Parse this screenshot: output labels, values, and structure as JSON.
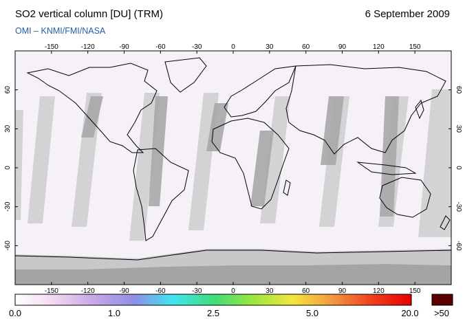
{
  "header": {
    "title": "SO2 vertical column [DU] (TRM)",
    "date": "6 September 2009",
    "credit": "OMI  –  KNMI/FMI/NASA"
  },
  "map": {
    "lon_ticks": [
      "-150",
      "-120",
      "-90",
      "-60",
      "-30",
      "0",
      "30",
      "60",
      "90",
      "120",
      "150"
    ],
    "lat_ticks": [
      "60",
      "30",
      "0",
      "-30",
      "-60"
    ],
    "colors": {
      "ocean_land_background": "#f6f1f9",
      "no_data_light_gray": "#d2d2d2",
      "no_data_dark_gray": "#a8a8a8",
      "coastline": "#000000"
    }
  },
  "colorbar": {
    "labels": [
      "0.0",
      "1.0",
      "2.5",
      "5.0",
      "20.0"
    ],
    "overflow_label": ">50",
    "overflow_color": "#5a0000",
    "gradient_stops": [
      "#ffffff",
      "#f2d7f2",
      "#c7a6e6",
      "#8f8fe6",
      "#3fe6f2",
      "#3fdc7a",
      "#9ae63f",
      "#f2e63f",
      "#f29a3f",
      "#f23f1f",
      "#e60000"
    ]
  }
}
